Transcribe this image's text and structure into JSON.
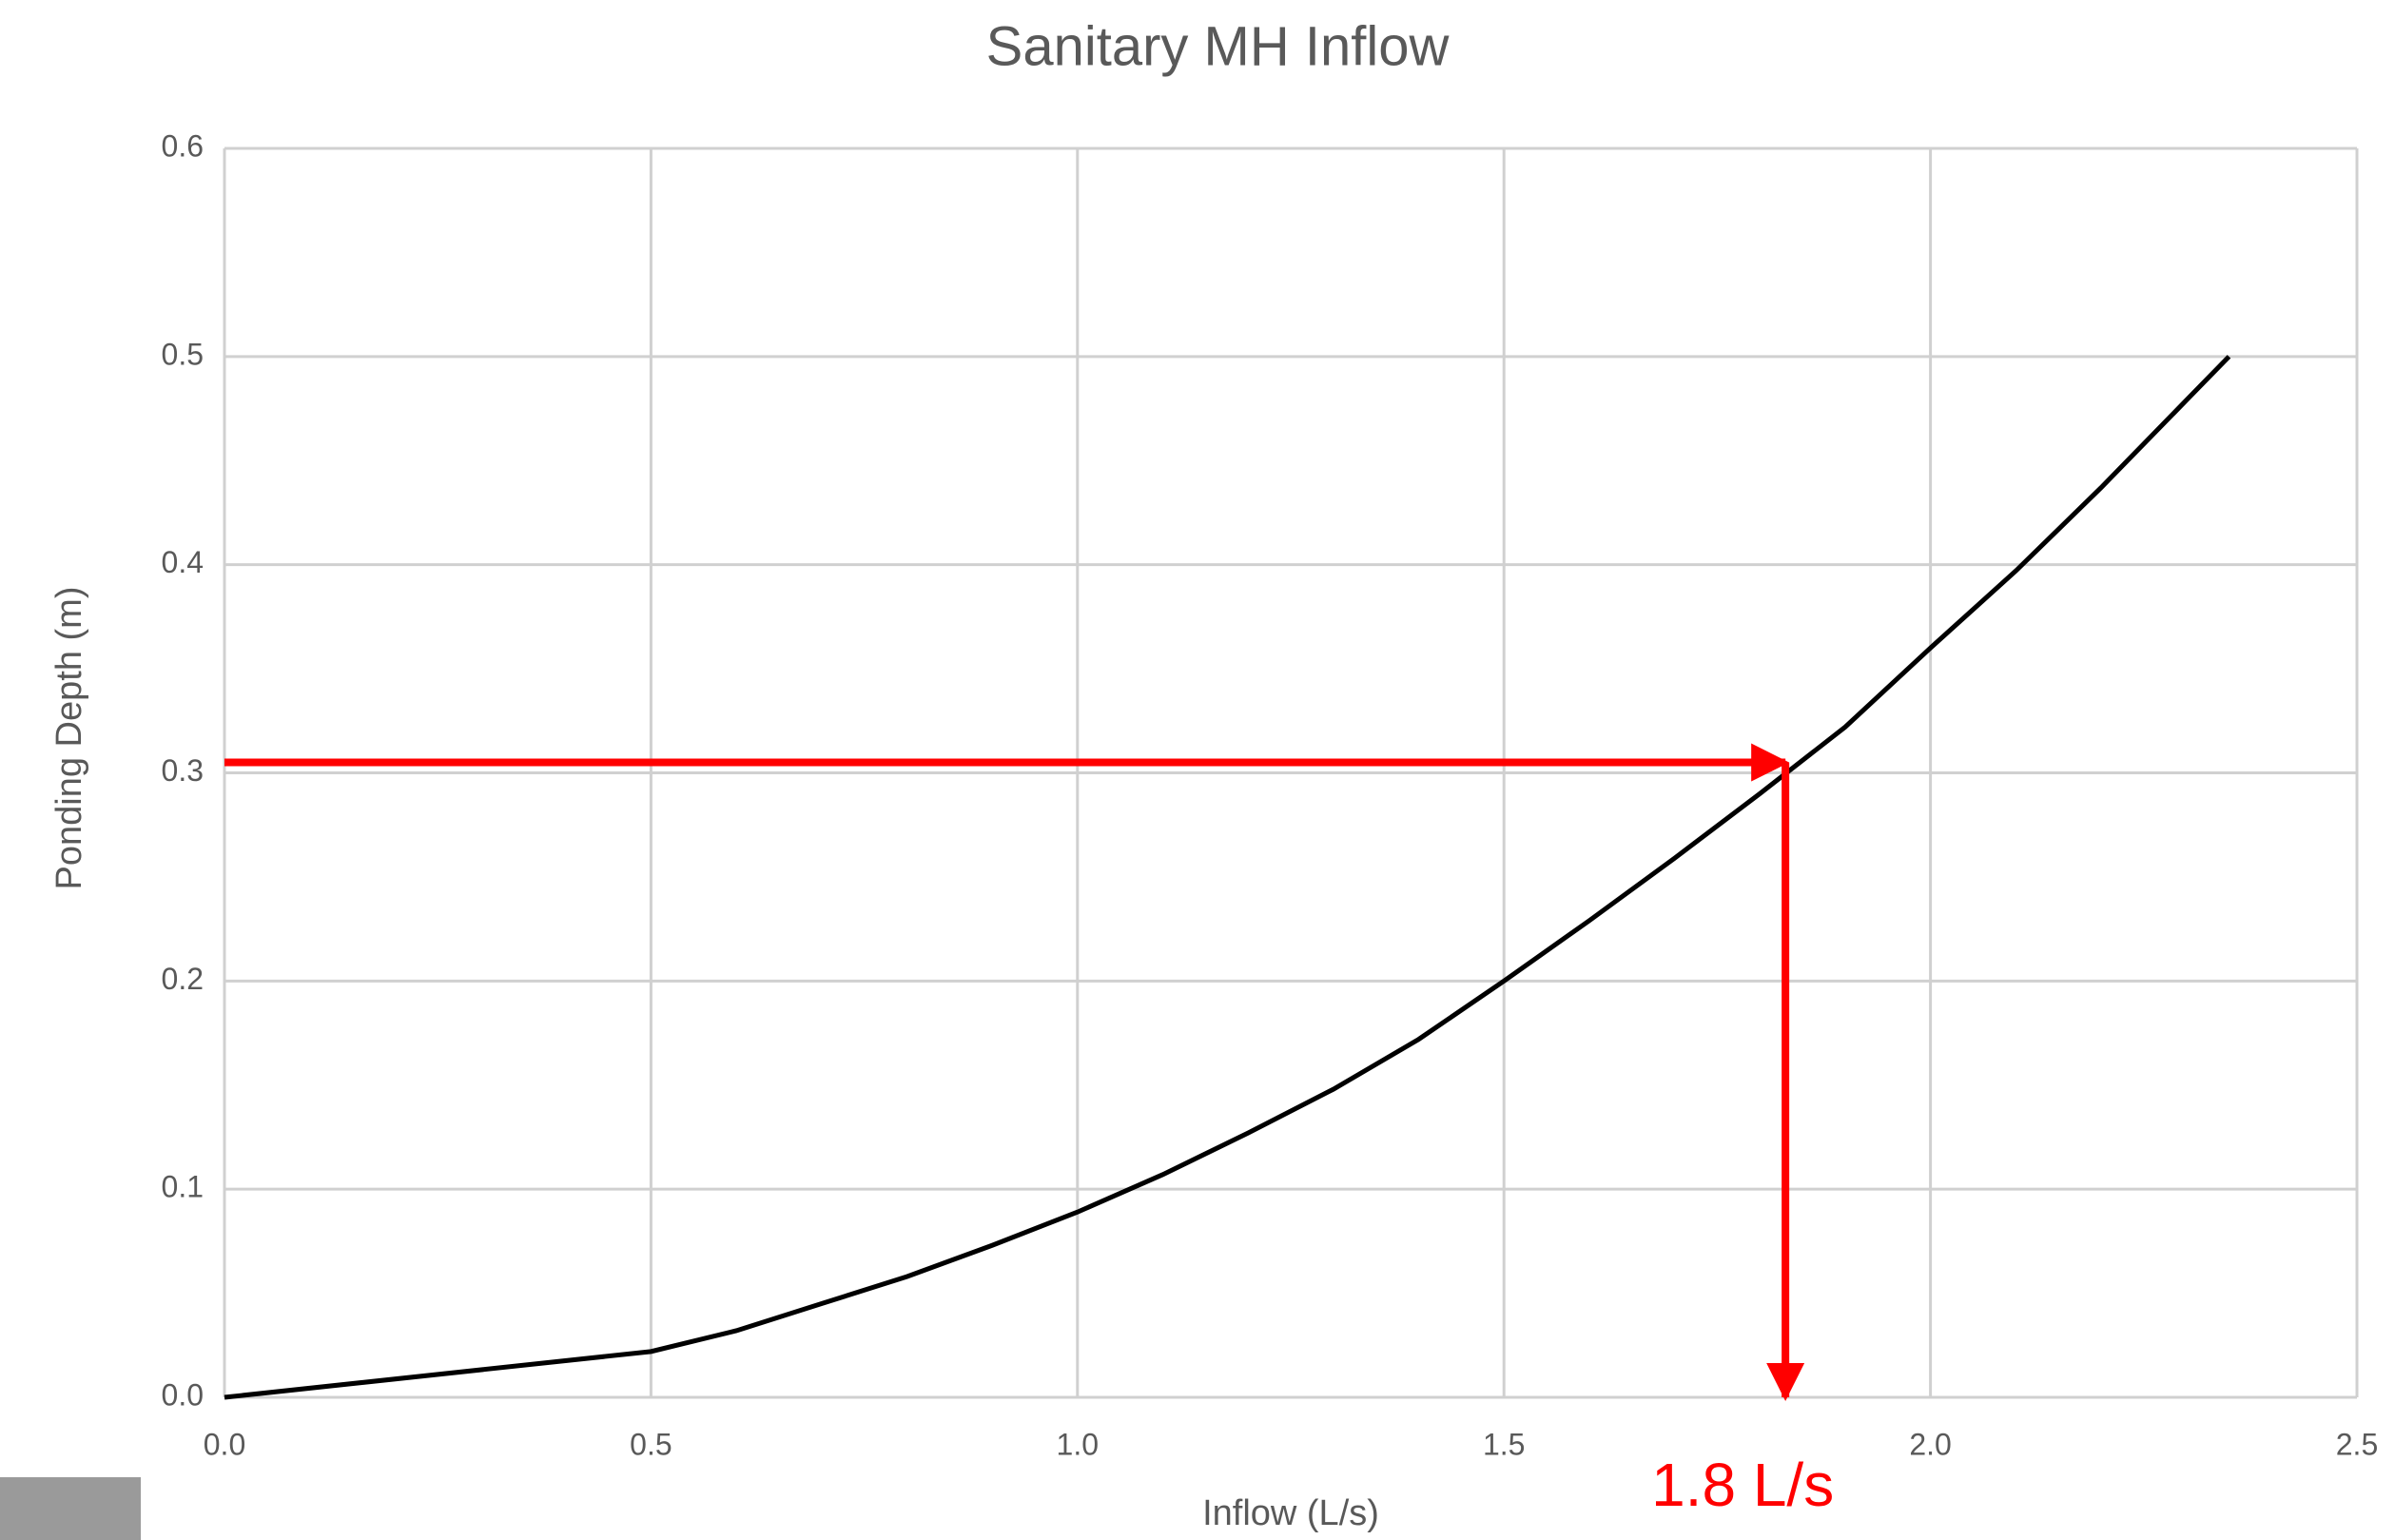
{
  "chart_data": {
    "type": "line",
    "title": "Sanitary MH Inflow",
    "x_label": "Inflow (L/s)",
    "y_label": "Ponding Depth (m)",
    "series": [
      {
        "color": "#000000",
        "x": [
          0,
          0.5,
          0.6,
          0.7,
          0.8,
          0.9,
          1.0,
          1.1,
          1.2,
          1.3,
          1.4,
          1.5,
          1.6,
          1.7,
          1.8,
          1.9,
          2.0,
          2.1,
          2.2,
          2.3,
          2.35
        ],
        "values": [
          0,
          0.022,
          0.032,
          0.045,
          0.058,
          0.073,
          0.089,
          0.107,
          0.127,
          0.148,
          0.172,
          0.2,
          0.229,
          0.259,
          0.29,
          0.322,
          0.36,
          0.397,
          0.437,
          0.479,
          0.5
        ]
      }
    ],
    "xlim": [
      0,
      2.5
    ],
    "ylim": [
      0,
      0.6
    ],
    "xticks": [
      {
        "value": 0,
        "label": "0.0"
      },
      0.5,
      {
        "value": 1,
        "label": "1.0"
      },
      1.5,
      {
        "value": 2,
        "label": "2.0"
      },
      2.5
    ],
    "yticks": [
      {
        "value": 0,
        "label": "0.0"
      },
      0.1,
      0.2,
      0.3,
      0.4,
      0.5,
      0.6
    ],
    "grid": true,
    "annotation": {
      "text": "1.8 L/s",
      "x": 1.83,
      "y": 0.305,
      "color": "#ff0000"
    }
  }
}
